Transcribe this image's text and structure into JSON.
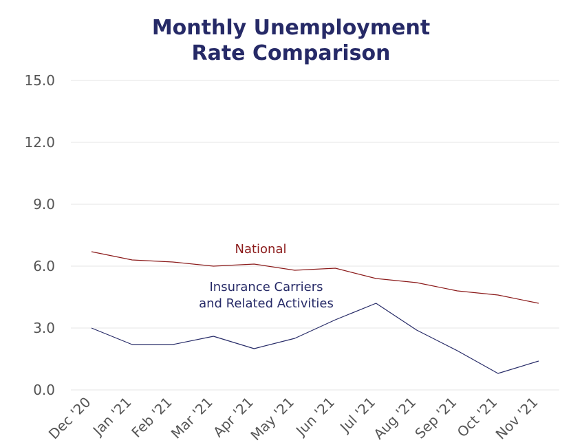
{
  "chart_data": {
    "type": "line",
    "title": [
      "Monthly Unemployment",
      "Rate Comparison"
    ],
    "xlabel": "",
    "ylabel": "",
    "ylim": [
      0,
      15
    ],
    "yticks": [
      "0.0",
      "3.0",
      "6.0",
      "9.0",
      "12.0",
      "15.0"
    ],
    "grid": true,
    "categories": [
      "Dec '20",
      "Jan '21",
      "Feb '21",
      "Mar '21",
      "Apr '21",
      "May '21",
      "Jun '21",
      "Jul '21",
      "Aug '21",
      "Sep '21",
      "Oct '21",
      "Nov '21"
    ],
    "series": [
      {
        "name": "National",
        "label_lines": [
          "National"
        ],
        "color": "#8b1a1a",
        "values": [
          6.7,
          6.3,
          6.2,
          6.0,
          6.1,
          5.8,
          5.9,
          5.4,
          5.2,
          4.8,
          4.6,
          4.2
        ]
      },
      {
        "name": "Insurance Carriers and Related Activities",
        "label_lines": [
          "Insurance Carriers",
          "and Related Activities"
        ],
        "color": "#262a67",
        "values": [
          3.0,
          2.2,
          2.2,
          2.6,
          2.0,
          2.5,
          3.4,
          4.2,
          2.9,
          1.9,
          0.8,
          1.4
        ]
      }
    ]
  }
}
